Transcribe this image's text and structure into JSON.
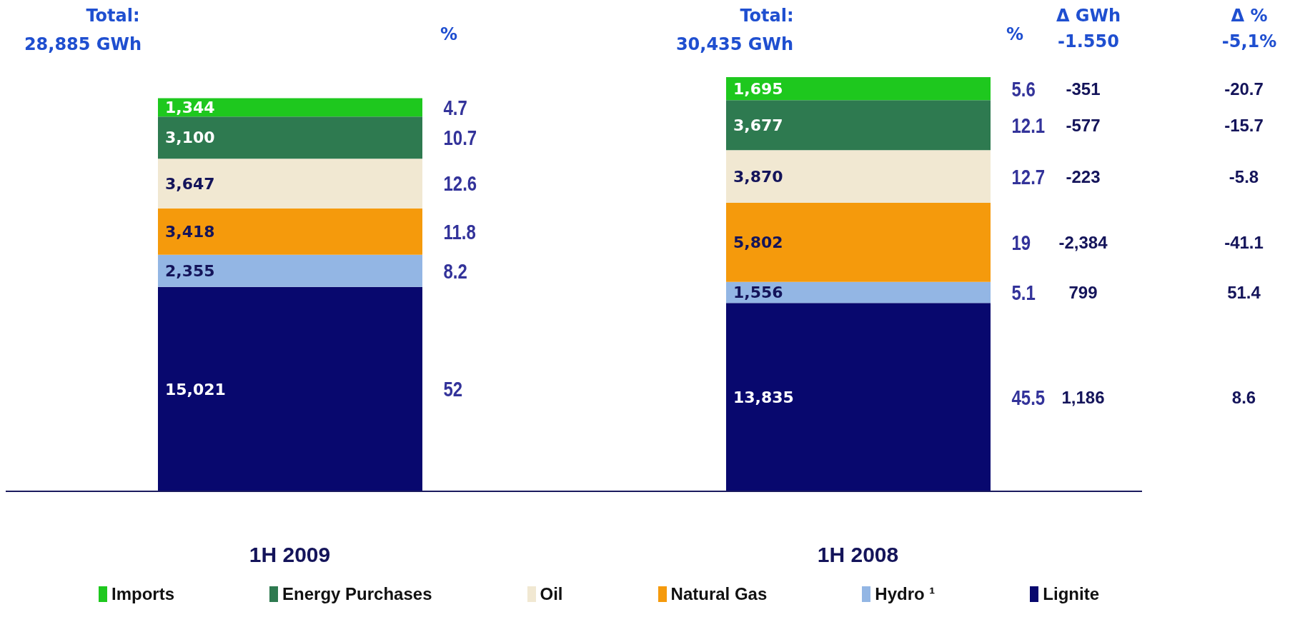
{
  "chart_data": {
    "type": "bar",
    "stacked": true,
    "legend": "bottom",
    "categories": [
      "1H 2009",
      "1H 2008"
    ],
    "series": [
      {
        "name": "Lignite",
        "color": "#08086e",
        "values": [
          15021,
          13835
        ],
        "value_labels": [
          "15,021",
          "13,835"
        ]
      },
      {
        "name": "Hydro ¹",
        "color": "#93b6e4",
        "values": [
          2355,
          1556
        ],
        "value_labels": [
          "2,355",
          "1,556"
        ]
      },
      {
        "name": "Natural Gas",
        "color": "#f59a0c",
        "values": [
          3418,
          5802
        ],
        "value_labels": [
          "3,418",
          "5,802"
        ]
      },
      {
        "name": "Oil",
        "color": "#f1e8d2",
        "values": [
          3647,
          3870
        ],
        "value_labels": [
          "3,647",
          "3,870"
        ]
      },
      {
        "name": "Energy Purchases",
        "color": "#2e7a50",
        "values": [
          3100,
          3677
        ],
        "value_labels": [
          "3,100",
          "3,677"
        ]
      },
      {
        "name": "Imports",
        "color": "#1ec81e",
        "values": [
          1344,
          1695
        ],
        "value_labels": [
          "1,344",
          "1,695"
        ]
      }
    ],
    "annotations": [
      "Total:",
      "28,885 GWh",
      "%",
      "Total:",
      "30,435 GWh",
      "%",
      "Δ GWh",
      "-1.550",
      "Δ %",
      "-5,1%",
      "52",
      "8.2",
      "11.8",
      "12.6",
      "10.7",
      "4.7",
      "45.5",
      "1,186",
      "8.6",
      "5.1",
      "799",
      "51.4",
      "19",
      "-2,384",
      "-41.1",
      "12.7",
      "-223",
      "-5.8",
      "12.1",
      "-577",
      "-15.7",
      "5.6",
      "-351",
      "-20.7"
    ]
  }
}
